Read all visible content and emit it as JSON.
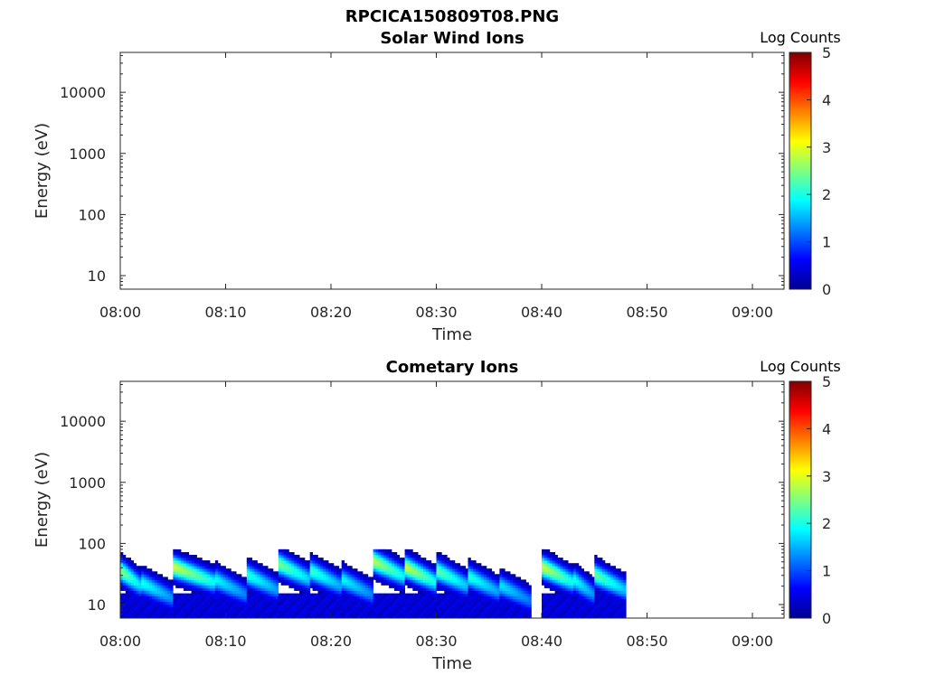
{
  "figure_title": "RPCICA150809T08.PNG",
  "chart_data": [
    {
      "type": "heatmap",
      "title": "Solar Wind Ions",
      "xlabel": "Time",
      "ylabel": "Energy (eV)",
      "x_ticks": [
        "08:00",
        "08:10",
        "08:20",
        "08:30",
        "08:40",
        "08:50",
        "09:00"
      ],
      "xlim": [
        "08:00",
        "09:03"
      ],
      "y_scale": "log",
      "y_ticks": [
        {
          "value": 10,
          "label": "10"
        },
        {
          "value": 100,
          "label": "100"
        },
        {
          "value": 1000,
          "label": "1000"
        },
        {
          "value": 10000,
          "label": "10000"
        }
      ],
      "ylim": [
        6,
        45000
      ],
      "colorbar": {
        "title": "Log Counts",
        "min": 0,
        "max": 5,
        "ticks": [
          "0",
          "1",
          "2",
          "3",
          "4",
          "5"
        ],
        "colormap": "jet"
      },
      "data_end": "08:48",
      "bands": []
    },
    {
      "type": "heatmap",
      "title": "Cometary Ions",
      "xlabel": "Time",
      "ylabel": "Energy (eV)",
      "x_ticks": [
        "08:00",
        "08:10",
        "08:20",
        "08:30",
        "08:40",
        "08:50",
        "09:00"
      ],
      "xlim": [
        "08:00",
        "09:03"
      ],
      "y_scale": "log",
      "y_ticks": [
        {
          "value": 10,
          "label": "10"
        },
        {
          "value": 100,
          "label": "100"
        },
        {
          "value": 1000,
          "label": "1000"
        },
        {
          "value": 10000,
          "label": "10000"
        }
      ],
      "ylim": [
        6,
        45000
      ],
      "colorbar": {
        "title": "Log Counts",
        "min": 0,
        "max": 5,
        "ticks": [
          "0",
          "1",
          "2",
          "3",
          "4",
          "5"
        ],
        "colormap": "jet"
      },
      "data_end": "08:48",
      "bands": [
        {
          "start": "08:00",
          "end": "08:02",
          "peak_energy": 35,
          "peak_log_counts": 2.6
        },
        {
          "start": "08:02",
          "end": "08:05",
          "peak_energy": 22,
          "peak_log_counts": 2.0
        },
        {
          "start": "08:05",
          "end": "08:09",
          "peak_energy": 40,
          "peak_log_counts": 2.9
        },
        {
          "start": "08:09",
          "end": "08:12",
          "peak_energy": 25,
          "peak_log_counts": 1.9
        },
        {
          "start": "08:12",
          "end": "08:15",
          "peak_energy": 30,
          "peak_log_counts": 2.1
        },
        {
          "start": "08:15",
          "end": "08:18",
          "peak_energy": 45,
          "peak_log_counts": 2.5
        },
        {
          "start": "08:18",
          "end": "08:21",
          "peak_energy": 35,
          "peak_log_counts": 2.2
        },
        {
          "start": "08:21",
          "end": "08:24",
          "peak_energy": 25,
          "peak_log_counts": 1.9
        },
        {
          "start": "08:24",
          "end": "08:27",
          "peak_energy": 50,
          "peak_log_counts": 2.8
        },
        {
          "start": "08:27",
          "end": "08:30",
          "peak_energy": 40,
          "peak_log_counts": 2.9
        },
        {
          "start": "08:30",
          "end": "08:33",
          "peak_energy": 35,
          "peak_log_counts": 2.4
        },
        {
          "start": "08:33",
          "end": "08:36",
          "peak_energy": 28,
          "peak_log_counts": 2.1
        },
        {
          "start": "08:36",
          "end": "08:39",
          "peak_energy": 20,
          "peak_log_counts": 1.8
        },
        {
          "start": "08:40",
          "end": "08:43",
          "peak_energy": 40,
          "peak_log_counts": 2.9
        },
        {
          "start": "08:43",
          "end": "08:45",
          "peak_energy": 25,
          "peak_log_counts": 2.0
        },
        {
          "start": "08:45",
          "end": "08:48",
          "peak_energy": 30,
          "peak_log_counts": 2.4
        }
      ]
    }
  ]
}
